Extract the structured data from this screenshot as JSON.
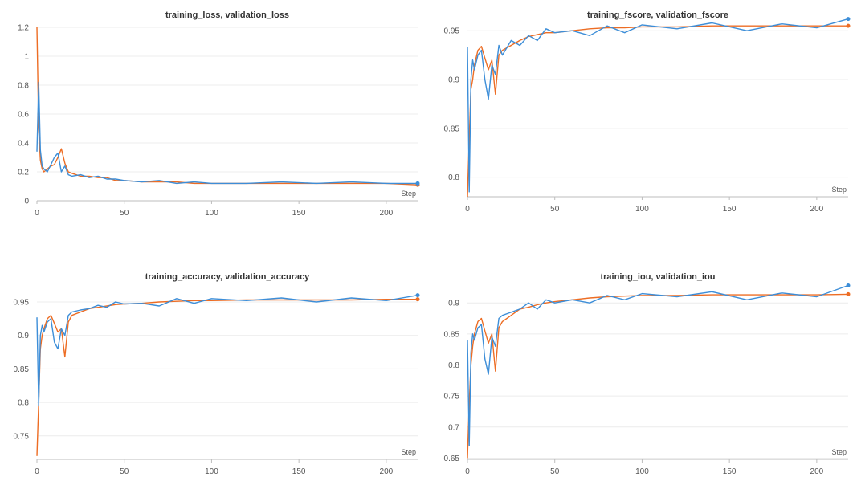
{
  "chart_data": [
    {
      "type": "line",
      "title": "training_loss, validation_loss",
      "xlabel": "Step",
      "ylabel": "",
      "xlim": [
        0,
        218
      ],
      "ylim": [
        0,
        1.2
      ],
      "xticks": [
        0,
        50,
        100,
        150,
        200
      ],
      "yticks": [
        0,
        0.2,
        0.4,
        0.6,
        0.8,
        1,
        1.2
      ],
      "ytick_labels": [
        "0",
        "0.2",
        "0.4",
        "0.6",
        "0.8",
        "1",
        "1.2"
      ],
      "grid": true,
      "series": [
        {
          "color": "#ed6d24",
          "x": [
            0,
            1,
            2,
            3,
            4,
            6,
            8,
            10,
            12,
            14,
            16,
            18,
            20,
            25,
            30,
            35,
            40,
            45,
            50,
            60,
            70,
            80,
            90,
            100,
            120,
            140,
            160,
            180,
            200,
            218
          ],
          "y": [
            1.2,
            0.5,
            0.28,
            0.22,
            0.2,
            0.22,
            0.24,
            0.25,
            0.3,
            0.36,
            0.26,
            0.2,
            0.19,
            0.17,
            0.17,
            0.16,
            0.16,
            0.14,
            0.14,
            0.13,
            0.13,
            0.13,
            0.12,
            0.12,
            0.12,
            0.12,
            0.12,
            0.12,
            0.12,
            0.11
          ]
        },
        {
          "color": "#3d8ed8",
          "x": [
            0,
            1,
            2,
            3,
            4,
            6,
            8,
            10,
            12,
            14,
            16,
            18,
            20,
            25,
            30,
            35,
            40,
            45,
            50,
            60,
            70,
            80,
            90,
            100,
            120,
            140,
            160,
            180,
            200,
            218
          ],
          "y": [
            0.34,
            0.82,
            0.35,
            0.24,
            0.22,
            0.2,
            0.25,
            0.3,
            0.33,
            0.2,
            0.24,
            0.18,
            0.17,
            0.18,
            0.16,
            0.17,
            0.15,
            0.15,
            0.14,
            0.13,
            0.14,
            0.12,
            0.13,
            0.12,
            0.12,
            0.13,
            0.12,
            0.13,
            0.12,
            0.12
          ]
        }
      ]
    },
    {
      "type": "line",
      "title": "training_fscore, validation_fscore",
      "xlabel": "Step",
      "ylabel": "",
      "xlim": [
        0,
        218
      ],
      "ylim": [
        0.78,
        0.965
      ],
      "xticks": [
        0,
        50,
        100,
        150,
        200
      ],
      "yticks": [
        0.8,
        0.85,
        0.9,
        0.95
      ],
      "ytick_labels": [
        "0.8",
        "0.85",
        "0.9",
        "0.95"
      ],
      "grid": true,
      "series": [
        {
          "color": "#ed6d24",
          "x": [
            0,
            1,
            2,
            3,
            4,
            6,
            8,
            10,
            12,
            14,
            16,
            18,
            20,
            25,
            30,
            35,
            40,
            45,
            50,
            60,
            70,
            80,
            90,
            100,
            120,
            140,
            160,
            180,
            200,
            218
          ],
          "y": [
            0.78,
            0.84,
            0.89,
            0.9,
            0.915,
            0.93,
            0.934,
            0.922,
            0.91,
            0.92,
            0.885,
            0.925,
            0.93,
            0.935,
            0.94,
            0.944,
            0.946,
            0.948,
            0.948,
            0.95,
            0.952,
            0.953,
            0.953,
            0.954,
            0.954,
            0.955,
            0.955,
            0.955,
            0.955,
            0.955
          ]
        },
        {
          "color": "#3d8ed8",
          "x": [
            0,
            1,
            2,
            3,
            4,
            6,
            8,
            10,
            12,
            14,
            16,
            18,
            20,
            25,
            30,
            35,
            40,
            45,
            50,
            60,
            70,
            80,
            90,
            100,
            120,
            140,
            160,
            180,
            200,
            218
          ],
          "y": [
            0.933,
            0.785,
            0.9,
            0.92,
            0.91,
            0.925,
            0.93,
            0.9,
            0.88,
            0.915,
            0.905,
            0.935,
            0.925,
            0.94,
            0.935,
            0.945,
            0.94,
            0.952,
            0.948,
            0.95,
            0.945,
            0.955,
            0.948,
            0.956,
            0.952,
            0.958,
            0.95,
            0.957,
            0.953,
            0.962
          ]
        }
      ]
    },
    {
      "type": "line",
      "title": "training_accuracy, validation_accuracy",
      "xlabel": "Step",
      "ylabel": "",
      "xlim": [
        0,
        218
      ],
      "ylim": [
        0.715,
        0.962
      ],
      "xticks": [
        0,
        50,
        100,
        150,
        200
      ],
      "yticks": [
        0.75,
        0.8,
        0.85,
        0.9,
        0.95
      ],
      "ytick_labels": [
        "0.75",
        "0.8",
        "0.85",
        "0.9",
        "0.95"
      ],
      "grid": true,
      "series": [
        {
          "color": "#ed6d24",
          "x": [
            0,
            1,
            2,
            3,
            4,
            6,
            8,
            10,
            12,
            14,
            16,
            18,
            20,
            25,
            30,
            35,
            40,
            45,
            50,
            60,
            70,
            80,
            90,
            100,
            120,
            140,
            160,
            180,
            200,
            218
          ],
          "y": [
            0.72,
            0.8,
            0.88,
            0.9,
            0.91,
            0.925,
            0.93,
            0.918,
            0.905,
            0.91,
            0.868,
            0.92,
            0.93,
            0.935,
            0.94,
            0.942,
            0.944,
            0.946,
            0.947,
            0.948,
            0.95,
            0.951,
            0.952,
            0.952,
            0.953,
            0.953,
            0.953,
            0.953,
            0.954,
            0.954
          ]
        },
        {
          "color": "#3d8ed8",
          "x": [
            0,
            1,
            2,
            3,
            4,
            6,
            8,
            10,
            12,
            14,
            16,
            18,
            20,
            25,
            30,
            35,
            40,
            45,
            50,
            60,
            70,
            80,
            90,
            100,
            120,
            140,
            160,
            180,
            200,
            218
          ],
          "y": [
            0.927,
            0.795,
            0.9,
            0.915,
            0.905,
            0.92,
            0.925,
            0.89,
            0.88,
            0.91,
            0.9,
            0.93,
            0.935,
            0.938,
            0.94,
            0.945,
            0.942,
            0.95,
            0.947,
            0.948,
            0.944,
            0.955,
            0.948,
            0.955,
            0.952,
            0.956,
            0.95,
            0.956,
            0.952,
            0.96
          ]
        }
      ]
    },
    {
      "type": "line",
      "title": "training_iou, validation_iou",
      "xlabel": "Step",
      "ylabel": "",
      "xlim": [
        0,
        218
      ],
      "ylim": [
        0.648,
        0.93
      ],
      "xticks": [
        0,
        50,
        100,
        150,
        200
      ],
      "yticks": [
        0.65,
        0.7,
        0.75,
        0.8,
        0.85,
        0.9
      ],
      "ytick_labels": [
        "0.65",
        "0.7",
        "0.75",
        "0.8",
        "0.85",
        "0.9"
      ],
      "grid": true,
      "series": [
        {
          "color": "#ed6d24",
          "x": [
            0,
            1,
            2,
            3,
            4,
            6,
            8,
            10,
            12,
            14,
            16,
            18,
            20,
            25,
            30,
            35,
            40,
            45,
            50,
            60,
            70,
            80,
            90,
            100,
            120,
            140,
            160,
            180,
            200,
            218
          ],
          "y": [
            0.65,
            0.74,
            0.8,
            0.83,
            0.85,
            0.87,
            0.875,
            0.855,
            0.835,
            0.85,
            0.79,
            0.86,
            0.87,
            0.88,
            0.89,
            0.893,
            0.897,
            0.9,
            0.902,
            0.905,
            0.908,
            0.91,
            0.911,
            0.912,
            0.912,
            0.913,
            0.913,
            0.913,
            0.913,
            0.914
          ]
        },
        {
          "color": "#3d8ed8",
          "x": [
            0,
            1,
            2,
            3,
            4,
            6,
            8,
            10,
            12,
            14,
            16,
            18,
            20,
            25,
            30,
            35,
            40,
            45,
            50,
            60,
            70,
            80,
            90,
            100,
            120,
            140,
            160,
            180,
            200,
            218
          ],
          "y": [
            0.84,
            0.67,
            0.82,
            0.85,
            0.84,
            0.86,
            0.865,
            0.81,
            0.785,
            0.845,
            0.83,
            0.875,
            0.88,
            0.885,
            0.89,
            0.9,
            0.89,
            0.905,
            0.9,
            0.905,
            0.9,
            0.912,
            0.905,
            0.915,
            0.91,
            0.918,
            0.905,
            0.916,
            0.91,
            0.928
          ]
        }
      ]
    }
  ]
}
